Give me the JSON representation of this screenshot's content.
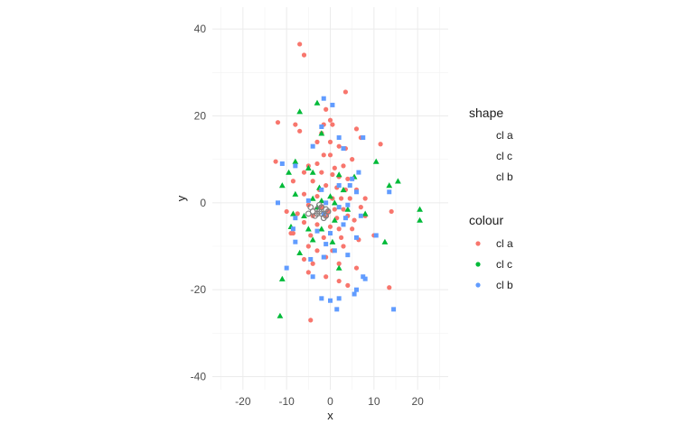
{
  "chart_data": {
    "type": "scatter",
    "xlabel": "x",
    "ylabel": "y",
    "xlim": [
      -27,
      27
    ],
    "ylim": [
      -43,
      45
    ],
    "x_ticks": [
      -20,
      -10,
      0,
      10,
      20
    ],
    "y_ticks": [
      -40,
      -20,
      0,
      20,
      40
    ],
    "x_tick_labels": [
      "-20",
      "-10",
      "0",
      "10",
      "20"
    ],
    "y_tick_labels": [
      "-40",
      "-20",
      "0",
      "20",
      "40"
    ],
    "grid": true,
    "legend": {
      "placement": "right",
      "shape_title": "shape",
      "shape_entries": [
        {
          "label": "cl a",
          "shape": "circle"
        },
        {
          "label": "cl c",
          "shape": "triangle"
        },
        {
          "label": "cl b",
          "shape": "square"
        }
      ],
      "colour_title": "colour",
      "colour_entries": [
        {
          "label": "cl a",
          "color": "#F8766D"
        },
        {
          "label": "cl c",
          "color": "#00BA38"
        },
        {
          "label": "cl b",
          "color": "#619CFF"
        }
      ]
    },
    "series": [
      {
        "name": "cl a",
        "color": "#F8766D",
        "shape": "circle",
        "points": [
          [
            -7,
            36.5
          ],
          [
            -6,
            34
          ],
          [
            3.5,
            25.5
          ],
          [
            -1,
            21.5
          ],
          [
            0,
            19
          ],
          [
            -12,
            18.5
          ],
          [
            -1.5,
            18
          ],
          [
            0.5,
            18
          ],
          [
            -8,
            18
          ],
          [
            -7,
            16.5
          ],
          [
            -2,
            16
          ],
          [
            6,
            17
          ],
          [
            7,
            15
          ],
          [
            11.5,
            13.5
          ],
          [
            -3,
            14
          ],
          [
            2,
            13
          ],
          [
            3.5,
            12.5
          ],
          [
            0,
            11
          ],
          [
            -1.5,
            11
          ],
          [
            5,
            10
          ],
          [
            -5,
            8.5
          ],
          [
            -3,
            9
          ],
          [
            1,
            8
          ],
          [
            3,
            8.5
          ],
          [
            -12.5,
            9.5
          ],
          [
            -6,
            7
          ],
          [
            -2,
            7
          ],
          [
            0.5,
            6.5
          ],
          [
            2,
            6
          ],
          [
            4,
            5.5
          ],
          [
            -4,
            5
          ],
          [
            -8.5,
            5
          ],
          [
            -1,
            4
          ],
          [
            1.5,
            3.5
          ],
          [
            3.5,
            3
          ],
          [
            6,
            3
          ],
          [
            -6,
            2
          ],
          [
            -3,
            1.5
          ],
          [
            0.5,
            1
          ],
          [
            2.5,
            1
          ],
          [
            4.5,
            1
          ],
          [
            -5,
            -0.5
          ],
          [
            -2,
            -1
          ],
          [
            1,
            -1.5
          ],
          [
            3,
            -1.5
          ],
          [
            -7.5,
            -2.5
          ],
          [
            -4,
            -3
          ],
          [
            -1,
            -3
          ],
          [
            1.5,
            -3.5
          ],
          [
            4,
            -3
          ],
          [
            7,
            -1
          ],
          [
            8,
            -3
          ],
          [
            14,
            -2
          ],
          [
            -6,
            -4.5
          ],
          [
            -3,
            -5
          ],
          [
            0,
            -5.5
          ],
          [
            2,
            -6
          ],
          [
            5,
            -6
          ],
          [
            -9,
            -7
          ],
          [
            -4.5,
            -7.5
          ],
          [
            -1.5,
            -8
          ],
          [
            2.5,
            -8
          ],
          [
            6.5,
            -8.5
          ],
          [
            10,
            -7.5
          ],
          [
            -5,
            -10
          ],
          [
            -3,
            -11
          ],
          [
            0.5,
            -11
          ],
          [
            3,
            -10
          ],
          [
            -6,
            -13
          ],
          [
            -4,
            -14
          ],
          [
            -1,
            -12.5
          ],
          [
            2,
            -14
          ],
          [
            6,
            -15
          ],
          [
            -5,
            -16
          ],
          [
            -1,
            -17
          ],
          [
            2,
            -18
          ],
          [
            4,
            -19
          ],
          [
            13.5,
            -19.5
          ],
          [
            -4.5,
            -27
          ],
          [
            -8.5,
            -7
          ],
          [
            -10,
            -2
          ],
          [
            8,
            1
          ],
          [
            5.5,
            -4
          ],
          [
            -2.5,
            3
          ],
          [
            0,
            14
          ],
          [
            -0.5,
            -2
          ]
        ]
      },
      {
        "name": "cl c",
        "color": "#00BA38",
        "shape": "triangle",
        "points": [
          [
            -7,
            21
          ],
          [
            -3,
            23
          ],
          [
            -2,
            16
          ],
          [
            -8,
            9.5
          ],
          [
            10.5,
            9.5
          ],
          [
            -5,
            8
          ],
          [
            -4,
            7
          ],
          [
            -9.5,
            7
          ],
          [
            2,
            6.5
          ],
          [
            -11,
            4
          ],
          [
            -2.5,
            3.5
          ],
          [
            3,
            3
          ],
          [
            15.5,
            5
          ],
          [
            13.5,
            4
          ],
          [
            0,
            1.5
          ],
          [
            -4,
            1
          ],
          [
            -8,
            2
          ],
          [
            -3,
            -1
          ],
          [
            4,
            -1.5
          ],
          [
            -6,
            -3
          ],
          [
            8,
            -2.5
          ],
          [
            20.5,
            -1.5
          ],
          [
            20.5,
            -4
          ],
          [
            -9,
            -5.5
          ],
          [
            -2,
            -6
          ],
          [
            1,
            -4
          ],
          [
            -4,
            -8.5
          ],
          [
            -7,
            -11.5
          ],
          [
            12.5,
            -9
          ],
          [
            2,
            -15
          ],
          [
            -11,
            -17.5
          ],
          [
            -11.5,
            -26
          ],
          [
            -5,
            -6
          ],
          [
            1,
            0
          ],
          [
            -8.5,
            -2.5
          ],
          [
            5.5,
            6
          ],
          [
            -2,
            0.5
          ],
          [
            0.5,
            -9
          ]
        ]
      },
      {
        "name": "cl b",
        "color": "#619CFF",
        "shape": "square",
        "points": [
          [
            -1.5,
            24
          ],
          [
            0.5,
            22.5
          ],
          [
            -2,
            17.5
          ],
          [
            2,
            15
          ],
          [
            7.5,
            15
          ],
          [
            -4,
            13
          ],
          [
            3,
            12.5
          ],
          [
            -11,
            9
          ],
          [
            -8,
            8.5
          ],
          [
            6.5,
            7
          ],
          [
            5,
            5.5
          ],
          [
            2,
            4
          ],
          [
            4.5,
            4
          ],
          [
            -2,
            3
          ],
          [
            6,
            2.5
          ],
          [
            13.5,
            2.5
          ],
          [
            -5,
            0.5
          ],
          [
            -1,
            0
          ],
          [
            2,
            -1
          ],
          [
            4,
            -0.5
          ],
          [
            -8,
            -3.5
          ],
          [
            -1.5,
            -2.5
          ],
          [
            3.5,
            -3.5
          ],
          [
            7,
            -3
          ],
          [
            -8.5,
            -6
          ],
          [
            -3,
            -6.5
          ],
          [
            0,
            -7
          ],
          [
            3,
            -5
          ],
          [
            6,
            -8
          ],
          [
            10.5,
            -7.5
          ],
          [
            -8,
            -9
          ],
          [
            -1,
            -9.5
          ],
          [
            1,
            -11
          ],
          [
            4,
            -12
          ],
          [
            -4.5,
            -13
          ],
          [
            -1.5,
            -12.5
          ],
          [
            -10,
            -15
          ],
          [
            -4,
            -17
          ],
          [
            7.5,
            -17
          ],
          [
            6,
            -20
          ],
          [
            -2,
            -22
          ],
          [
            0,
            -22.5
          ],
          [
            2,
            -22
          ],
          [
            5.5,
            -21
          ],
          [
            1.5,
            -24.5
          ],
          [
            14.5,
            -24.5
          ],
          [
            -12,
            0
          ],
          [
            8,
            -17.5
          ]
        ]
      },
      {
        "name": "",
        "color": "#7f7f7f",
        "shape": "circle-open",
        "points": [
          [
            -4,
            -2
          ],
          [
            -3,
            -1.5
          ],
          [
            -2,
            -2.5
          ],
          [
            -1,
            -1.5
          ],
          [
            -3.5,
            -3
          ],
          [
            -2.5,
            -0.5
          ],
          [
            -1.5,
            -3.5
          ],
          [
            -4.5,
            -1
          ],
          [
            -0.5,
            -2
          ],
          [
            -2,
            -1
          ],
          [
            -5,
            -2.5
          ],
          [
            -3,
            -2.5
          ],
          [
            -1,
            -3
          ],
          [
            -2.5,
            -2
          ]
        ]
      }
    ]
  }
}
